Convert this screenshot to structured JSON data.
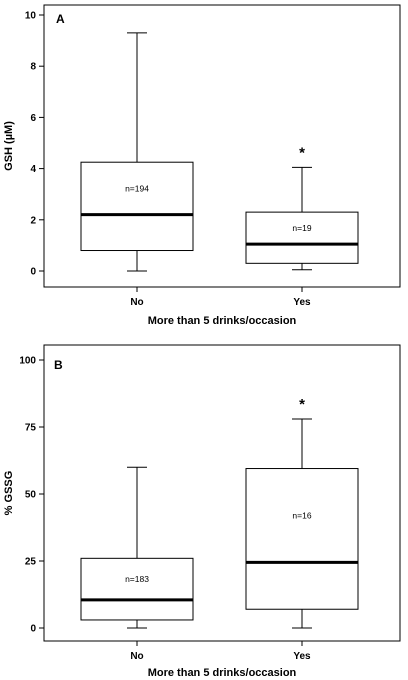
{
  "chart_data": [
    {
      "type": "box",
      "panel_label": "A",
      "xlabel": "More than 5 drinks/occasion",
      "ylabel": "GSH (µM)",
      "ylim": [
        0,
        10
      ],
      "yticks": [
        0,
        2,
        4,
        6,
        8,
        10
      ],
      "categories": [
        "No",
        "Yes"
      ],
      "boxes": [
        {
          "category": "No",
          "min": 0.0,
          "q1": 0.8,
          "median": 2.2,
          "q3": 4.25,
          "max": 9.3,
          "n_label": "n=194",
          "marker": ""
        },
        {
          "category": "Yes",
          "min": 0.05,
          "q1": 0.3,
          "median": 1.05,
          "q3": 2.3,
          "max": 4.05,
          "n_label": "n=19",
          "marker": "*"
        }
      ]
    },
    {
      "type": "box",
      "panel_label": "B",
      "xlabel": "More than 5 drinks/occasion",
      "ylabel": "% GSSG",
      "ylim": [
        0,
        100
      ],
      "yticks": [
        0,
        25,
        50,
        75,
        100
      ],
      "categories": [
        "No",
        "Yes"
      ],
      "boxes": [
        {
          "category": "No",
          "min": 0,
          "q1": 3,
          "median": 10.5,
          "q3": 26,
          "max": 60,
          "n_label": "n=183",
          "marker": ""
        },
        {
          "category": "Yes",
          "min": 0,
          "q1": 7,
          "median": 24.5,
          "q3": 59.5,
          "max": 78,
          "n_label": "n=16",
          "marker": "*"
        }
      ]
    }
  ]
}
